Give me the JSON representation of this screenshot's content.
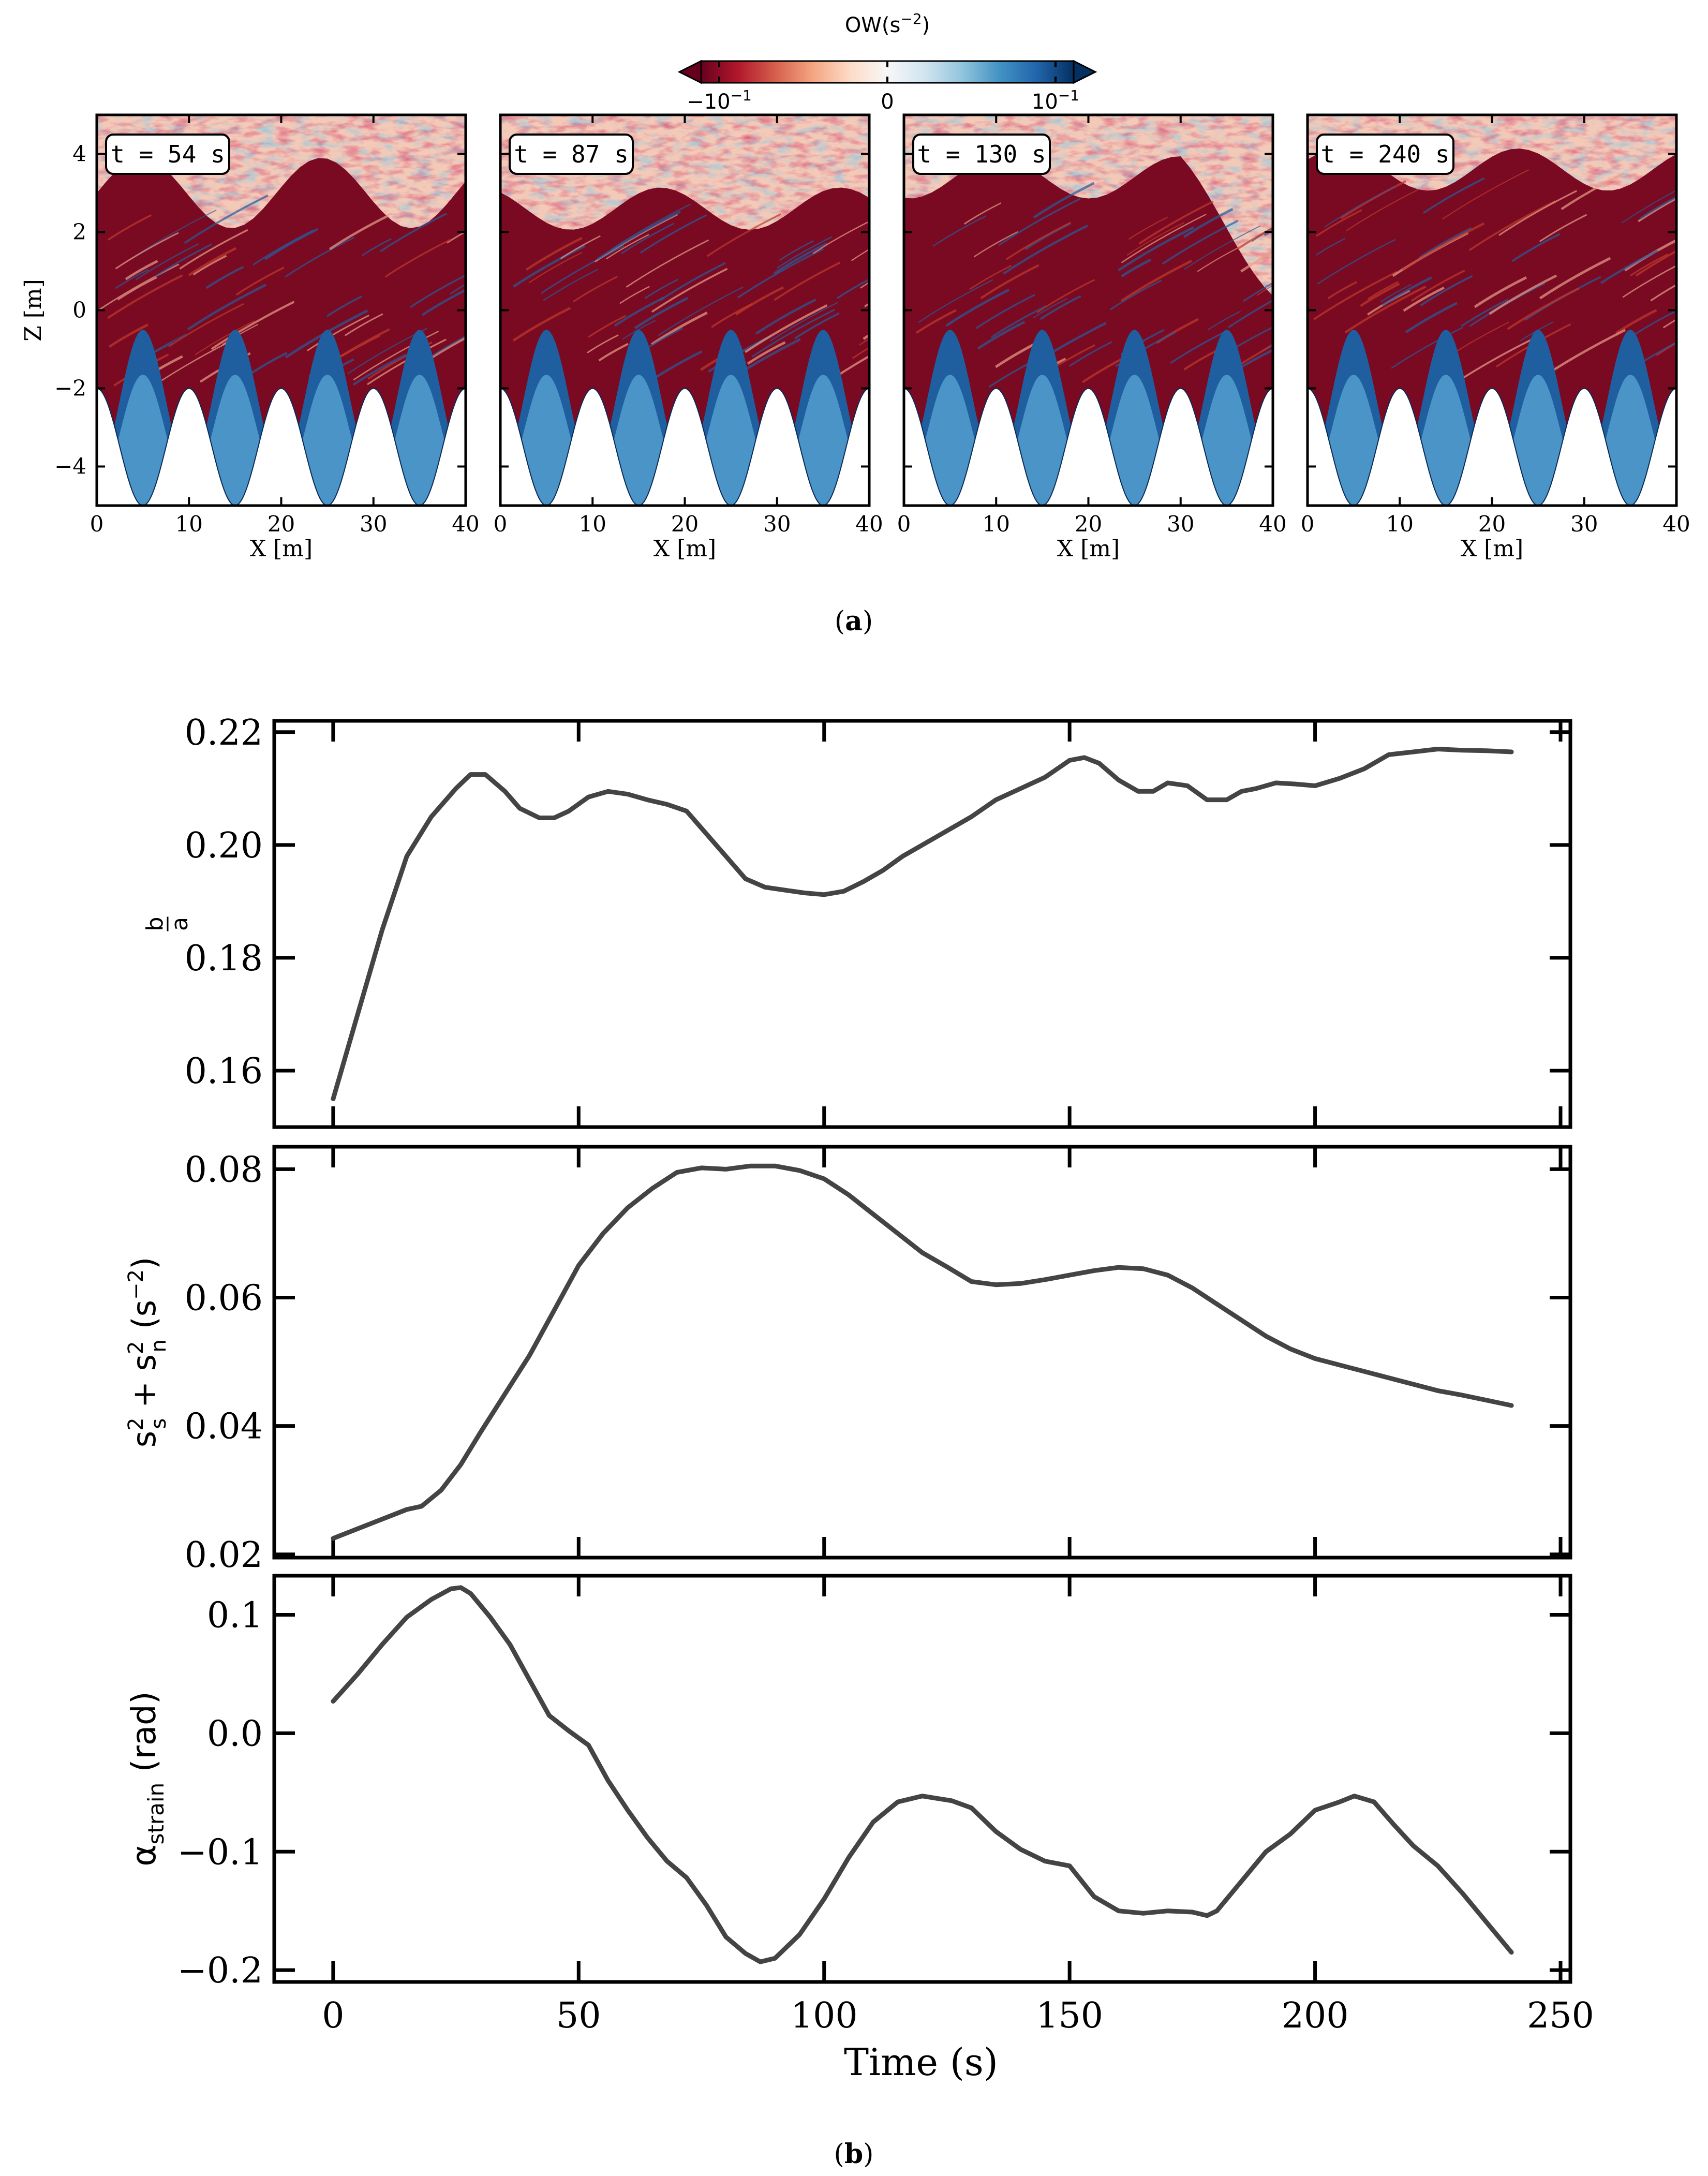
{
  "panel_a": {
    "caption": "(a)",
    "caption_letter": "a",
    "colorbar": {
      "label": "OW(s",
      "label_exp": "−2",
      "label_close": ")",
      "tick_neg": "−10",
      "tick_neg_exp": "−1",
      "tick_zero": "0",
      "tick_pos": "10",
      "tick_pos_exp": "−1",
      "colors": [
        "#67001f",
        "#b2182b",
        "#d6604d",
        "#f4a582",
        "#fddbc7",
        "#f7f7f7",
        "#d1e5f0",
        "#92c5de",
        "#4393c3",
        "#2166ac",
        "#053061"
      ]
    },
    "xlabel": "X [m]",
    "ylabel": "Z [m]",
    "xticks": [
      "0",
      "10",
      "20",
      "30",
      "40"
    ],
    "yticks": [
      "4",
      "2",
      "0",
      "−2",
      "−4"
    ],
    "xlim": [
      0,
      40
    ],
    "ylim": [
      -5,
      5
    ],
    "snapshots": [
      {
        "label": "t = 54 s",
        "time": 54
      },
      {
        "label": "t = 87 s",
        "time": 87
      },
      {
        "label": "t = 130 s",
        "time": 130
      },
      {
        "label": "t = 240 s",
        "time": 240
      }
    ]
  },
  "panel_b": {
    "caption": "(b)",
    "caption_letter": "b",
    "xlabel": "Time (s)",
    "xticks": [
      "0",
      "50",
      "100",
      "150",
      "200",
      "250"
    ],
    "line_color": "#444444"
  },
  "chart_data": [
    {
      "type": "line",
      "ylabel": "b/a",
      "ylabel_num": "b",
      "ylabel_den": "a",
      "xlim": [
        -12,
        252
      ],
      "ylim": [
        0.15,
        0.222
      ],
      "yticks": [
        0.16,
        0.18,
        0.2,
        0.22
      ],
      "ytick_labels": [
        "0.16",
        "0.18",
        "0.20",
        "0.22"
      ],
      "x": [
        0,
        5,
        10,
        15,
        20,
        25,
        28,
        31,
        35,
        38,
        42,
        45,
        48,
        52,
        56,
        60,
        64,
        68,
        72,
        76,
        80,
        84,
        88,
        92,
        96,
        100,
        104,
        108,
        112,
        116,
        120,
        125,
        130,
        135,
        140,
        145,
        150,
        153,
        156,
        160,
        164,
        167,
        170,
        174,
        178,
        182,
        185,
        188,
        192,
        196,
        200,
        205,
        210,
        215,
        220,
        225,
        230,
        235,
        240
      ],
      "y": [
        0.155,
        0.17,
        0.185,
        0.198,
        0.205,
        0.21,
        0.2125,
        0.2125,
        0.2095,
        0.2065,
        0.2048,
        0.2048,
        0.206,
        0.2085,
        0.2095,
        0.209,
        0.208,
        0.2072,
        0.206,
        0.202,
        0.198,
        0.194,
        0.1925,
        0.192,
        0.1915,
        0.1912,
        0.1918,
        0.1935,
        0.1955,
        0.198,
        0.2,
        0.2025,
        0.205,
        0.208,
        0.21,
        0.212,
        0.215,
        0.2155,
        0.2145,
        0.2115,
        0.2095,
        0.2095,
        0.211,
        0.2105,
        0.208,
        0.208,
        0.2095,
        0.21,
        0.211,
        0.2108,
        0.2105,
        0.2118,
        0.2135,
        0.216,
        0.2165,
        0.217,
        0.2168,
        0.2167,
        0.2165
      ]
    },
    {
      "type": "line",
      "ylabel": "s_s² + s_n² (s⁻²)",
      "xlim": [
        -12,
        252
      ],
      "ylim": [
        0.0195,
        0.0835
      ],
      "yticks": [
        0.02,
        0.04,
        0.06,
        0.08
      ],
      "ytick_labels": [
        "0.02",
        "0.04",
        "0.06",
        "0.08"
      ],
      "x": [
        0,
        5,
        10,
        15,
        18,
        22,
        26,
        30,
        35,
        40,
        45,
        50,
        55,
        60,
        65,
        70,
        75,
        80,
        85,
        90,
        95,
        100,
        105,
        110,
        115,
        120,
        125,
        130,
        135,
        140,
        145,
        150,
        155,
        160,
        165,
        170,
        175,
        180,
        185,
        190,
        195,
        200,
        205,
        210,
        215,
        220,
        225,
        230,
        235,
        240
      ],
      "y": [
        0.0225,
        0.024,
        0.0255,
        0.027,
        0.0275,
        0.03,
        0.034,
        0.039,
        0.045,
        0.051,
        0.058,
        0.065,
        0.07,
        0.074,
        0.077,
        0.0795,
        0.0802,
        0.08,
        0.0805,
        0.0805,
        0.0798,
        0.0785,
        0.076,
        0.073,
        0.07,
        0.067,
        0.0648,
        0.0625,
        0.062,
        0.0622,
        0.0628,
        0.0635,
        0.0642,
        0.0647,
        0.0645,
        0.0635,
        0.0615,
        0.059,
        0.0565,
        0.054,
        0.052,
        0.0505,
        0.0495,
        0.0485,
        0.0475,
        0.0465,
        0.0455,
        0.0448,
        0.044,
        0.0432
      ]
    },
    {
      "type": "line",
      "ylabel": "α_strain (rad)",
      "xlim": [
        -12,
        252
      ],
      "ylim": [
        -0.21,
        0.133
      ],
      "yticks": [
        0.1,
        0.0,
        -0.1,
        -0.2
      ],
      "ytick_labels": [
        "0.1",
        "0.0",
        "−0.1",
        "−0.2"
      ],
      "x": [
        0,
        5,
        10,
        15,
        20,
        24,
        26,
        28,
        32,
        36,
        40,
        44,
        48,
        52,
        56,
        60,
        64,
        68,
        72,
        76,
        80,
        84,
        87,
        90,
        95,
        100,
        105,
        110,
        115,
        120,
        123,
        126,
        130,
        135,
        140,
        145,
        150,
        155,
        160,
        165,
        170,
        175,
        178,
        180,
        185,
        190,
        195,
        200,
        205,
        208,
        212,
        216,
        220,
        225,
        230,
        235,
        240
      ],
      "y": [
        0.027,
        0.05,
        0.075,
        0.098,
        0.113,
        0.122,
        0.123,
        0.118,
        0.098,
        0.075,
        0.045,
        0.015,
        0.002,
        -0.01,
        -0.04,
        -0.065,
        -0.088,
        -0.108,
        -0.122,
        -0.145,
        -0.172,
        -0.186,
        -0.193,
        -0.19,
        -0.17,
        -0.14,
        -0.105,
        -0.075,
        -0.058,
        -0.053,
        -0.055,
        -0.057,
        -0.063,
        -0.083,
        -0.098,
        -0.108,
        -0.112,
        -0.138,
        -0.15,
        -0.152,
        -0.15,
        -0.151,
        -0.154,
        -0.15,
        -0.125,
        -0.1,
        -0.085,
        -0.065,
        -0.058,
        -0.053,
        -0.058,
        -0.077,
        -0.095,
        -0.112,
        -0.135,
        -0.16,
        -0.185
      ]
    }
  ]
}
